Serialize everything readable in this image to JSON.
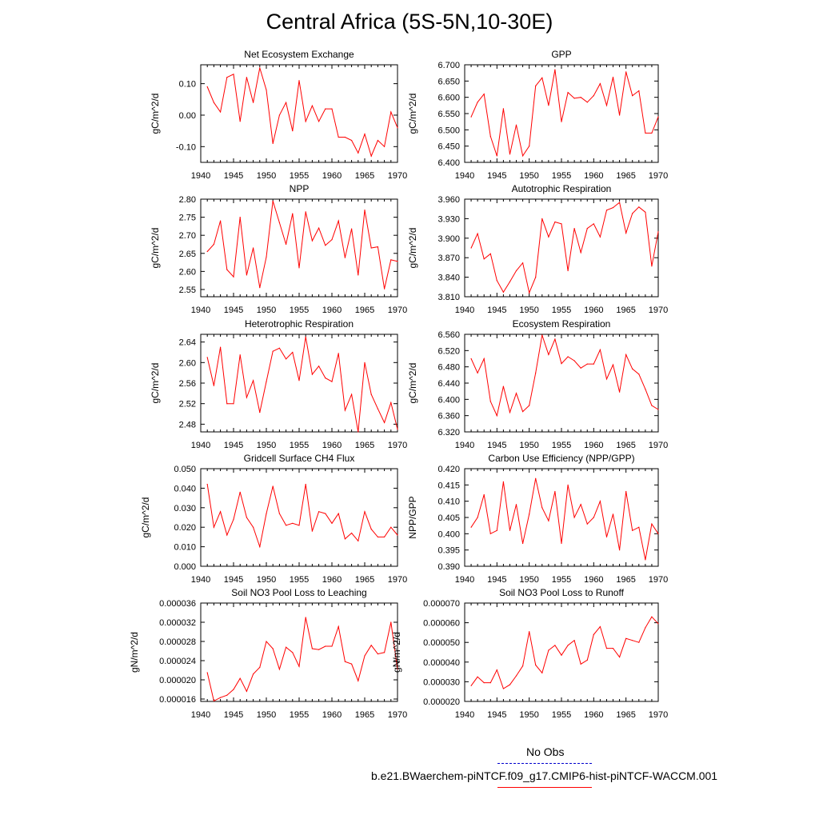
{
  "title": "Central Africa (5S-5N,10-30E)",
  "colors": {
    "series": "#ff0000",
    "obs": "#0000cc",
    "axis": "#000000"
  },
  "legend": {
    "entries": [
      {
        "label": "No Obs",
        "color": "#0000cc",
        "style": "dashed"
      },
      {
        "label": "b.e21.BWaerchem-piNTCF.f09_g17.CMIP6-hist-piNTCF-WACCM.001",
        "color": "#ff0000",
        "style": "solid"
      }
    ]
  },
  "chart_data": [
    {
      "type": "line",
      "title": "Net Ecosystem Exchange",
      "xlabel": "",
      "ylabel": "gC/m^2/d",
      "xlim": [
        1940,
        1970
      ],
      "ylim": [
        -0.15,
        0.16
      ],
      "xticks": [
        1940,
        1945,
        1950,
        1955,
        1960,
        1965,
        1970
      ],
      "yticks": [
        "-0.10",
        "0.00",
        "0.10"
      ],
      "yticks_values": [
        -0.1,
        0.0,
        0.1
      ],
      "x": [
        1941,
        1942,
        1943,
        1944,
        1945,
        1946,
        1947,
        1948,
        1949,
        1950,
        1951,
        1952,
        1953,
        1954,
        1955,
        1956,
        1957,
        1958,
        1959,
        1960,
        1961,
        1962,
        1963,
        1964,
        1965,
        1966,
        1967,
        1968,
        1969,
        1970
      ],
      "series": [
        {
          "values": [
            0.09,
            0.04,
            0.01,
            0.12,
            0.13,
            -0.02,
            0.12,
            0.04,
            0.15,
            0.08,
            -0.09,
            0.0,
            0.04,
            -0.05,
            0.11,
            -0.02,
            0.03,
            -0.02,
            0.02,
            0.02,
            -0.07,
            -0.07,
            -0.08,
            -0.12,
            -0.06,
            -0.13,
            -0.08,
            -0.1,
            0.01,
            -0.04
          ]
        }
      ]
    },
    {
      "type": "line",
      "title": "GPP",
      "xlabel": "",
      "ylabel": "gC/m^2/d",
      "xlim": [
        1940,
        1970
      ],
      "ylim": [
        6.4,
        6.7
      ],
      "xticks": [
        1940,
        1945,
        1950,
        1955,
        1960,
        1965,
        1970
      ],
      "yticks": [
        "6.400",
        "6.450",
        "6.500",
        "6.550",
        "6.600",
        "6.650",
        "6.700"
      ],
      "yticks_values": [
        6.4,
        6.45,
        6.5,
        6.55,
        6.6,
        6.65,
        6.7
      ],
      "x": [
        1941,
        1942,
        1943,
        1944,
        1945,
        1946,
        1947,
        1948,
        1949,
        1950,
        1951,
        1952,
        1953,
        1954,
        1955,
        1956,
        1957,
        1958,
        1959,
        1960,
        1961,
        1962,
        1963,
        1964,
        1965,
        1966,
        1967,
        1968,
        1969,
        1970
      ],
      "series": [
        {
          "values": [
            6.54,
            6.585,
            6.61,
            6.48,
            6.42,
            6.565,
            6.425,
            6.515,
            6.42,
            6.45,
            6.635,
            6.66,
            6.575,
            6.685,
            6.525,
            6.615,
            6.597,
            6.6,
            6.585,
            6.605,
            6.642,
            6.575,
            6.662,
            6.545,
            6.678,
            6.605,
            6.62,
            6.49,
            6.49,
            6.54
          ]
        }
      ]
    },
    {
      "type": "line",
      "title": "NPP",
      "xlabel": "",
      "ylabel": "gC/m^2/d",
      "xlim": [
        1940,
        1970
      ],
      "ylim": [
        2.53,
        2.8
      ],
      "xticks": [
        1940,
        1945,
        1950,
        1955,
        1960,
        1965,
        1970
      ],
      "yticks": [
        "2.55",
        "2.60",
        "2.65",
        "2.70",
        "2.75",
        "2.80"
      ],
      "yticks_values": [
        2.55,
        2.6,
        2.65,
        2.7,
        2.75,
        2.8
      ],
      "x": [
        1941,
        1942,
        1943,
        1944,
        1945,
        1946,
        1947,
        1948,
        1949,
        1950,
        1951,
        1952,
        1953,
        1954,
        1955,
        1956,
        1957,
        1958,
        1959,
        1960,
        1961,
        1962,
        1963,
        1964,
        1965,
        1966,
        1967,
        1968,
        1969,
        1970
      ],
      "series": [
        {
          "values": [
            2.655,
            2.675,
            2.74,
            2.605,
            2.585,
            2.75,
            2.59,
            2.665,
            2.555,
            2.64,
            2.795,
            2.735,
            2.675,
            2.76,
            2.61,
            2.765,
            2.685,
            2.72,
            2.672,
            2.688,
            2.74,
            2.638,
            2.718,
            2.59,
            2.77,
            2.665,
            2.668,
            2.552,
            2.632,
            2.628
          ]
        }
      ]
    },
    {
      "type": "line",
      "title": "Autotrophic Respiration",
      "xlabel": "",
      "ylabel": "gC/m^2/d",
      "xlim": [
        1940,
        1970
      ],
      "ylim": [
        3.81,
        3.96
      ],
      "xticks": [
        1940,
        1945,
        1950,
        1955,
        1960,
        1965,
        1970
      ],
      "yticks": [
        "3.810",
        "3.840",
        "3.870",
        "3.900",
        "3.930",
        "3.960"
      ],
      "yticks_values": [
        3.81,
        3.84,
        3.87,
        3.9,
        3.93,
        3.96
      ],
      "x": [
        1941,
        1942,
        1943,
        1944,
        1945,
        1946,
        1947,
        1948,
        1949,
        1950,
        1951,
        1952,
        1953,
        1954,
        1955,
        1956,
        1957,
        1958,
        1959,
        1960,
        1961,
        1962,
        1963,
        1964,
        1965,
        1966,
        1967,
        1968,
        1969,
        1970
      ],
      "series": [
        {
          "values": [
            3.885,
            3.907,
            3.868,
            3.876,
            3.835,
            3.817,
            3.833,
            3.85,
            3.862,
            3.816,
            3.84,
            3.93,
            3.902,
            3.925,
            3.922,
            3.85,
            3.915,
            3.878,
            3.915,
            3.922,
            3.902,
            3.943,
            3.947,
            3.955,
            3.908,
            3.938,
            3.948,
            3.94,
            3.857,
            3.91
          ]
        }
      ]
    },
    {
      "type": "line",
      "title": "Heterotrophic Respiration",
      "xlabel": "",
      "ylabel": "gC/m^2/d",
      "xlim": [
        1940,
        1970
      ],
      "ylim": [
        2.465,
        2.655
      ],
      "xticks": [
        1940,
        1945,
        1950,
        1955,
        1960,
        1965,
        1970
      ],
      "yticks": [
        "2.48",
        "2.52",
        "2.56",
        "2.60",
        "2.64"
      ],
      "yticks_values": [
        2.48,
        2.52,
        2.56,
        2.6,
        2.64
      ],
      "x": [
        1941,
        1942,
        1943,
        1944,
        1945,
        1946,
        1947,
        1948,
        1949,
        1950,
        1951,
        1952,
        1953,
        1954,
        1955,
        1956,
        1957,
        1958,
        1959,
        1960,
        1961,
        1962,
        1963,
        1964,
        1965,
        1966,
        1967,
        1968,
        1969,
        1970
      ],
      "series": [
        {
          "values": [
            2.61,
            2.555,
            2.63,
            2.52,
            2.52,
            2.615,
            2.532,
            2.565,
            2.503,
            2.563,
            2.622,
            2.628,
            2.607,
            2.62,
            2.565,
            2.65,
            2.577,
            2.593,
            2.57,
            2.563,
            2.618,
            2.507,
            2.538,
            2.465,
            2.6,
            2.538,
            2.51,
            2.483,
            2.522,
            2.47
          ]
        }
      ]
    },
    {
      "type": "line",
      "title": "Ecosystem Respiration",
      "xlabel": "",
      "ylabel": "gC/m^2/d",
      "xlim": [
        1940,
        1970
      ],
      "ylim": [
        6.32,
        6.56
      ],
      "xticks": [
        1940,
        1945,
        1950,
        1955,
        1960,
        1965,
        1970
      ],
      "yticks": [
        "6.320",
        "6.360",
        "6.400",
        "6.440",
        "6.480",
        "6.520",
        "6.560"
      ],
      "yticks_values": [
        6.32,
        6.36,
        6.4,
        6.44,
        6.48,
        6.52,
        6.56
      ],
      "x": [
        1941,
        1942,
        1943,
        1944,
        1945,
        1946,
        1947,
        1948,
        1949,
        1950,
        1951,
        1952,
        1953,
        1954,
        1955,
        1956,
        1957,
        1958,
        1959,
        1960,
        1961,
        1962,
        1963,
        1964,
        1965,
        1966,
        1967,
        1968,
        1969,
        1970
      ],
      "series": [
        {
          "values": [
            6.5,
            6.465,
            6.5,
            6.395,
            6.36,
            6.432,
            6.368,
            6.415,
            6.37,
            6.385,
            6.465,
            6.558,
            6.51,
            6.548,
            6.488,
            6.505,
            6.495,
            6.477,
            6.487,
            6.487,
            6.522,
            6.45,
            6.485,
            6.418,
            6.51,
            6.475,
            6.462,
            6.425,
            6.385,
            6.375
          ]
        }
      ]
    },
    {
      "type": "line",
      "title": "Gridcell Surface CH4 Flux",
      "xlabel": "",
      "ylabel": "gC/m^2/d",
      "xlim": [
        1940,
        1970
      ],
      "ylim": [
        0.0,
        0.05
      ],
      "xticks": [
        1940,
        1945,
        1950,
        1955,
        1960,
        1965,
        1970
      ],
      "yticks": [
        "0.000",
        "0.010",
        "0.020",
        "0.030",
        "0.040",
        "0.050"
      ],
      "yticks_values": [
        0.0,
        0.01,
        0.02,
        0.03,
        0.04,
        0.05
      ],
      "x": [
        1941,
        1942,
        1943,
        1944,
        1945,
        1946,
        1947,
        1948,
        1949,
        1950,
        1951,
        1952,
        1953,
        1954,
        1955,
        1956,
        1957,
        1958,
        1959,
        1960,
        1961,
        1962,
        1963,
        1964,
        1965,
        1966,
        1967,
        1968,
        1969,
        1970
      ],
      "series": [
        {
          "values": [
            0.042,
            0.02,
            0.028,
            0.016,
            0.024,
            0.038,
            0.025,
            0.02,
            0.01,
            0.027,
            0.041,
            0.027,
            0.021,
            0.022,
            0.021,
            0.042,
            0.018,
            0.028,
            0.027,
            0.022,
            0.027,
            0.014,
            0.017,
            0.013,
            0.028,
            0.019,
            0.015,
            0.015,
            0.02,
            0.016
          ]
        }
      ]
    },
    {
      "type": "line",
      "title": "Carbon Use Efficiency (NPP/GPP)",
      "xlabel": "",
      "ylabel": "NPP/GPP",
      "xlim": [
        1940,
        1970
      ],
      "ylim": [
        0.39,
        0.42
      ],
      "xticks": [
        1940,
        1945,
        1950,
        1955,
        1960,
        1965,
        1970
      ],
      "yticks": [
        "0.390",
        "0.395",
        "0.400",
        "0.405",
        "0.410",
        "0.415",
        "0.420"
      ],
      "yticks_values": [
        0.39,
        0.395,
        0.4,
        0.405,
        0.41,
        0.415,
        0.42
      ],
      "x": [
        1941,
        1942,
        1943,
        1944,
        1945,
        1946,
        1947,
        1948,
        1949,
        1950,
        1951,
        1952,
        1953,
        1954,
        1955,
        1956,
        1957,
        1958,
        1959,
        1960,
        1961,
        1962,
        1963,
        1964,
        1965,
        1966,
        1967,
        1968,
        1969,
        1970
      ],
      "series": [
        {
          "values": [
            0.402,
            0.405,
            0.412,
            0.4,
            0.401,
            0.416,
            0.401,
            0.409,
            0.397,
            0.406,
            0.417,
            0.408,
            0.404,
            0.413,
            0.397,
            0.415,
            0.405,
            0.409,
            0.403,
            0.405,
            0.41,
            0.399,
            0.406,
            0.395,
            0.413,
            0.401,
            0.402,
            0.392,
            0.403,
            0.4
          ]
        }
      ]
    },
    {
      "type": "line",
      "title": "Soil NO3 Pool Loss to Leaching",
      "xlabel": "",
      "ylabel": "gN/m^2/d",
      "xlim": [
        1940,
        1970
      ],
      "ylim": [
        1.55e-05,
        3.6e-05
      ],
      "xticks": [
        1940,
        1945,
        1950,
        1955,
        1960,
        1965,
        1970
      ],
      "yticks": [
        "0.000016",
        "0.000020",
        "0.000024",
        "0.000028",
        "0.000032",
        "0.000036"
      ],
      "yticks_values": [
        1.6e-05,
        2e-05,
        2.4e-05,
        2.8e-05,
        3.2e-05,
        3.6e-05
      ],
      "x": [
        1941,
        1942,
        1943,
        1944,
        1945,
        1946,
        1947,
        1948,
        1949,
        1950,
        1951,
        1952,
        1953,
        1954,
        1955,
        1956,
        1957,
        1958,
        1959,
        1960,
        1961,
        1962,
        1963,
        1964,
        1965,
        1966,
        1967,
        1968,
        1969,
        1970
      ],
      "series": [
        {
          "values": [
            2.15e-05,
            1.56e-05,
            1.63e-05,
            1.68e-05,
            1.8e-05,
            2.03e-05,
            1.76e-05,
            2.12e-05,
            2.26e-05,
            2.8e-05,
            2.65e-05,
            2.22e-05,
            2.68e-05,
            2.57e-05,
            2.28e-05,
            3.3e-05,
            2.65e-05,
            2.63e-05,
            2.7e-05,
            2.7e-05,
            3.11e-05,
            2.38e-05,
            2.33e-05,
            1.98e-05,
            2.5e-05,
            2.72e-05,
            2.54e-05,
            2.57e-05,
            3.2e-05,
            2.22e-05
          ]
        }
      ]
    },
    {
      "type": "line",
      "title": "Soil NO3 Pool Loss to Runoff",
      "xlabel": "",
      "ylabel": "gN/m^2/d",
      "xlim": [
        1940,
        1970
      ],
      "ylim": [
        2e-05,
        7e-05
      ],
      "xticks": [
        1940,
        1945,
        1950,
        1955,
        1960,
        1965,
        1970
      ],
      "yticks": [
        "0.000020",
        "0.000030",
        "0.000040",
        "0.000050",
        "0.000060",
        "0.000070"
      ],
      "yticks_values": [
        2e-05,
        3e-05,
        4e-05,
        5e-05,
        6e-05,
        7e-05
      ],
      "x": [
        1941,
        1942,
        1943,
        1944,
        1945,
        1946,
        1947,
        1948,
        1949,
        1950,
        1951,
        1952,
        1953,
        1954,
        1955,
        1956,
        1957,
        1958,
        1959,
        1960,
        1961,
        1962,
        1963,
        1964,
        1965,
        1966,
        1967,
        1968,
        1969,
        1970
      ],
      "series": [
        {
          "values": [
            2.8e-05,
            3.25e-05,
            2.95e-05,
            2.95e-05,
            3.6e-05,
            2.65e-05,
            2.85e-05,
            3.3e-05,
            3.8e-05,
            5.55e-05,
            3.85e-05,
            3.45e-05,
            4.6e-05,
            4.85e-05,
            4.35e-05,
            4.85e-05,
            5.1e-05,
            3.9e-05,
            4.1e-05,
            5.4e-05,
            5.8e-05,
            4.7e-05,
            4.7e-05,
            4.25e-05,
            5.2e-05,
            5.1e-05,
            5e-05,
            5.75e-05,
            6.3e-05,
            5.95e-05
          ]
        }
      ]
    }
  ]
}
